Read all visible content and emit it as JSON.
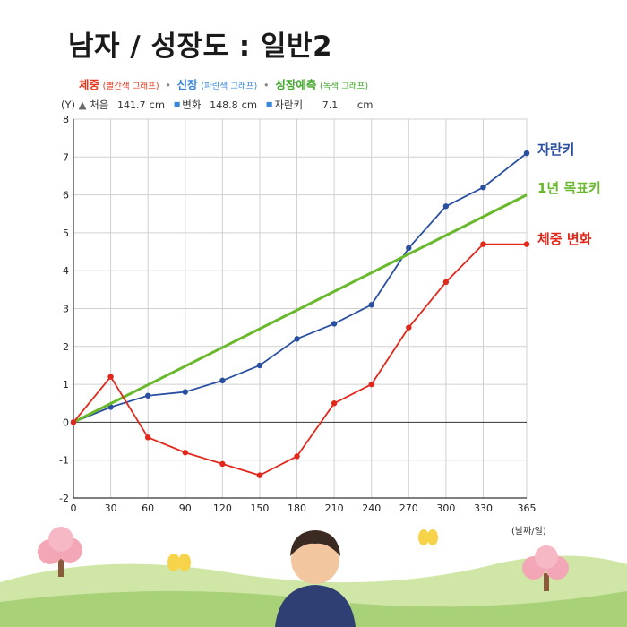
{
  "title": "남자 / 성장도 : 일반2",
  "legend": [
    {
      "name": "체중",
      "note": "(빨간색 그래프)",
      "color": "#e8361d"
    },
    {
      "name": "신장",
      "note": "(파란색 그래프)",
      "color": "#3a86d9"
    },
    {
      "name": "성장예측",
      "note": "(녹색 그래프)",
      "color": "#41a62a"
    }
  ],
  "legend_separator": "•",
  "stats": {
    "unit_label": "(Y)",
    "start_label": "처음",
    "start_value": "141.7",
    "change_label": "변화",
    "change_value": "148.8",
    "grew_label": "자란키",
    "grew_value": "7.1",
    "unit": "cm"
  },
  "colors": {
    "height": "#2b4fa0",
    "target": "#6ab82e",
    "weight": "#e0271a",
    "grid": "#d0d0d0",
    "axis": "#333333"
  },
  "chart_data": {
    "type": "line",
    "x": [
      0,
      30,
      60,
      90,
      120,
      150,
      180,
      210,
      240,
      270,
      300,
      330,
      365
    ],
    "xlim": [
      0,
      365
    ],
    "ylim": [
      -2,
      8
    ],
    "yticks": [
      -2,
      -1,
      0,
      1,
      2,
      3,
      4,
      5,
      6,
      7,
      8
    ],
    "xlabel": "(날짜/일)",
    "ylabel": "(Y)",
    "grid": true,
    "series": [
      {
        "name": "자란키",
        "color": "#2b4fa0",
        "markers": true,
        "values": [
          0,
          0.4,
          0.7,
          0.8,
          1.1,
          1.5,
          2.2,
          2.6,
          3.1,
          4.6,
          5.7,
          6.2,
          7.1
        ]
      },
      {
        "name": "1년 목표키",
        "color": "#6ab82e",
        "markers": false,
        "x": [
          0,
          365
        ],
        "values": [
          0,
          6
        ]
      },
      {
        "name": "체중 변화",
        "color": "#e0271a",
        "markers": true,
        "values": [
          0,
          1.2,
          -0.4,
          -0.8,
          -1.1,
          -1.4,
          -0.9,
          0.5,
          1.0,
          2.5,
          3.7,
          4.7,
          4.7
        ]
      }
    ]
  }
}
